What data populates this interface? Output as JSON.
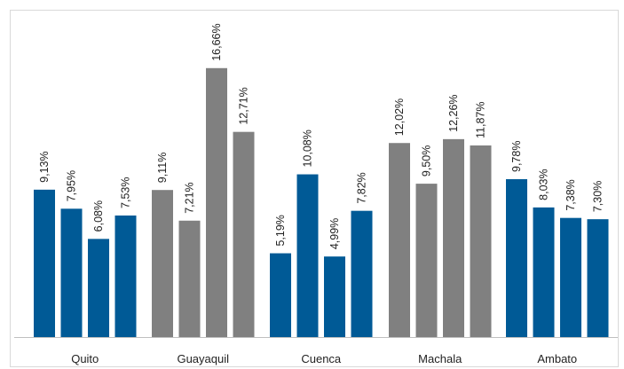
{
  "chart_data": {
    "type": "bar",
    "title": "",
    "xlabel": "",
    "ylabel": "",
    "ylim": [
      0,
      18
    ],
    "grid": false,
    "legend": "none",
    "colors": {
      "blue": "#005a96",
      "gray": "#808080",
      "axis": "#bfbfbf",
      "frame": "#d9d9d9"
    },
    "categories": [
      "Quito",
      "Guayaquil",
      "Cuenca",
      "Machala",
      "Ambato"
    ],
    "groups": [
      {
        "category": "Quito",
        "color": "blue",
        "values": [
          9.13,
          7.95,
          6.08,
          7.53
        ],
        "labels": [
          "9,13%",
          "7,95%",
          "6,08%",
          "7,53%"
        ]
      },
      {
        "category": "Guayaquil",
        "color": "gray",
        "values": [
          9.11,
          7.21,
          16.66,
          12.71
        ],
        "labels": [
          "9,11%",
          "7,21%",
          "16,66%",
          "12,71%"
        ]
      },
      {
        "category": "Cuenca",
        "color": "blue",
        "values": [
          5.19,
          10.08,
          4.99,
          7.82
        ],
        "labels": [
          "5,19%",
          "10,08%",
          "4,99%",
          "7,82%"
        ]
      },
      {
        "category": "Machala",
        "color": "gray",
        "values": [
          12.02,
          9.5,
          12.26,
          11.87
        ],
        "labels": [
          "12,02%",
          "9,50%",
          "12,26%",
          "11,87%"
        ]
      },
      {
        "category": "Ambato",
        "color": "blue",
        "values": [
          9.78,
          8.03,
          7.38,
          7.3
        ],
        "labels": [
          "9,78%",
          "8,03%",
          "7,38%",
          "7,30%"
        ]
      }
    ]
  }
}
